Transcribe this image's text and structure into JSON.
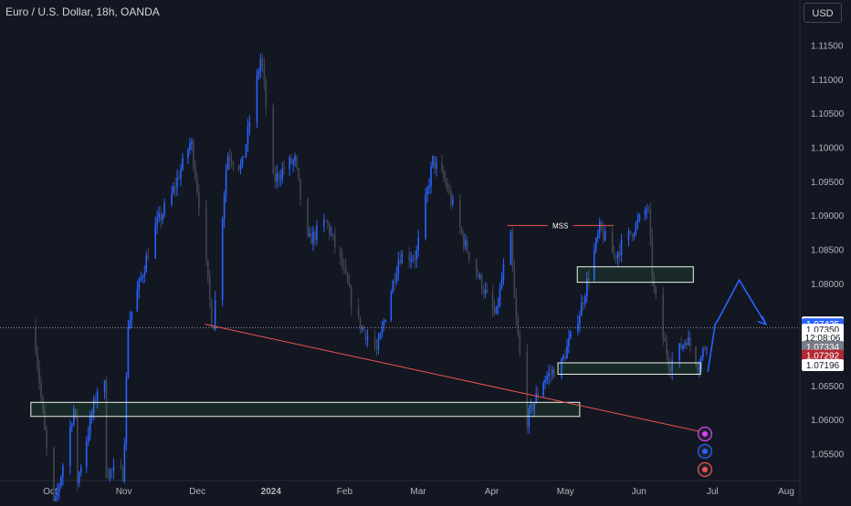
{
  "header": {
    "title": "Euro / U.S. Dollar, 18h, OANDA",
    "currency": "USD"
  },
  "colors": {
    "background": "#131722",
    "candle_up": "#2962ff",
    "candle_down": "#434651",
    "zone": "#4caf50",
    "trendline": "#ef5350",
    "projection": "#2962ff",
    "axis_text": "#b2b5be"
  },
  "chart_data": {
    "type": "candlestick",
    "title": "Euro / U.S. Dollar, 18h, OANDA",
    "ylim": [
      1.052,
      1.118
    ],
    "y_ticks": [
      "1.11500",
      "1.11000",
      "1.10500",
      "1.10000",
      "1.09500",
      "1.09000",
      "1.08500",
      "1.08000",
      "1.06500",
      "1.06000",
      "1.05500"
    ],
    "x_ticks": [
      "Oct",
      "Nov",
      "Dec",
      "2024",
      "Feb",
      "Mar",
      "Apr",
      "May",
      "Jun",
      "Jul",
      "Aug"
    ],
    "price_path": [
      [
        "2023-09-25",
        1.0735
      ],
      [
        "2023-10-03",
        1.046
      ],
      [
        "2023-10-12",
        1.0625
      ],
      [
        "2023-10-13",
        1.051
      ],
      [
        "2023-10-24",
        1.069
      ],
      [
        "2023-10-25",
        1.0525
      ],
      [
        "2023-11-01",
        1.052
      ],
      [
        "2023-11-03",
        1.074
      ],
      [
        "2023-11-14",
        1.088
      ],
      [
        "2023-11-21",
        1.093
      ],
      [
        "2023-11-29",
        1.101
      ],
      [
        "2023-12-04",
        1.087
      ],
      [
        "2023-12-08",
        1.073
      ],
      [
        "2023-12-14",
        1.099
      ],
      [
        "2023-12-20",
        1.097
      ],
      [
        "2023-12-28",
        1.1135
      ],
      [
        "2024-01-02",
        1.095
      ],
      [
        "2024-01-08",
        1.0975
      ],
      [
        "2024-01-11",
        1.098
      ],
      [
        "2024-01-16",
        1.086
      ],
      [
        "2024-01-24",
        1.089
      ],
      [
        "2024-01-31",
        1.082
      ],
      [
        "2024-02-05",
        1.075
      ],
      [
        "2024-02-14",
        1.07
      ],
      [
        "2024-02-23",
        1.084
      ],
      [
        "2024-03-01",
        1.084
      ],
      [
        "2024-03-08",
        1.098
      ],
      [
        "2024-03-13",
        1.095
      ],
      [
        "2024-03-21",
        1.086
      ],
      [
        "2024-03-28",
        1.08
      ],
      [
        "2024-04-03",
        1.075
      ],
      [
        "2024-04-09",
        1.088
      ],
      [
        "2024-04-11",
        1.076
      ],
      [
        "2024-04-16",
        1.06
      ],
      [
        "2024-04-23",
        1.066
      ],
      [
        "2024-04-30",
        1.068
      ],
      [
        "2024-05-08",
        1.076
      ],
      [
        "2024-05-16",
        1.088
      ],
      [
        "2024-05-22",
        1.084
      ],
      [
        "2024-06-03",
        1.09
      ],
      [
        "2024-06-05",
        1.0915
      ],
      [
        "2024-06-07",
        1.08
      ],
      [
        "2024-06-10",
        1.074
      ],
      [
        "2024-06-14",
        1.068
      ],
      [
        "2024-06-21",
        1.072
      ],
      [
        "2024-06-26",
        1.068
      ],
      [
        "2024-07-01",
        1.0735
      ]
    ],
    "horizontal_line": {
      "label": "MSS",
      "y": 1.0885,
      "x_start": "2024-04-07",
      "x_end": "2024-05-21"
    },
    "zones": [
      {
        "x_start": "2024-05-06",
        "x_end": "2024-06-23",
        "y_low": 1.0807,
        "y_high": 1.0819
      },
      {
        "x_start": "2024-04-28",
        "x_end": "2024-06-26",
        "y_low": 1.0672,
        "y_high": 1.0678
      },
      {
        "x_start": "2023-09-23",
        "x_end": "2024-05-07",
        "y_low": 1.061,
        "y_high": 1.062
      }
    ],
    "trendline": {
      "x_start": "2023-12-04",
      "y_start": 1.074,
      "x_end": "2024-06-29",
      "y_end": 1.058
    },
    "projection_path": [
      [
        "2024-06-29",
        1.067
      ],
      [
        "2024-07-02",
        1.074
      ],
      [
        "2024-07-03",
        1.0745
      ],
      [
        "2024-07-12",
        1.0805
      ],
      [
        "2024-07-23",
        1.074
      ]
    ],
    "price_labels": [
      {
        "text": "1.07427",
        "bg": "#ffffff",
        "fg": "#131722",
        "y": 1.07427
      },
      {
        "text": "1.07425",
        "bg": "#2962ff",
        "fg": "#ffffff",
        "y": 1.074
      },
      {
        "text": "1.07350",
        "bg": "#ffffff",
        "fg": "#131722",
        "y": 1.0732
      },
      {
        "text": "12:08:06",
        "bg": "#ffffff",
        "fg": "#131722",
        "y": 1.072
      },
      {
        "text": "1.07334",
        "bg": "#787b86",
        "fg": "#ffffff",
        "y": 1.0707
      },
      {
        "text": "1.07292",
        "bg": "#b22833",
        "fg": "#ffffff",
        "y": 1.0694
      },
      {
        "text": "1.07196",
        "bg": "#ffffff",
        "fg": "#131722",
        "y": 1.068
      }
    ]
  }
}
